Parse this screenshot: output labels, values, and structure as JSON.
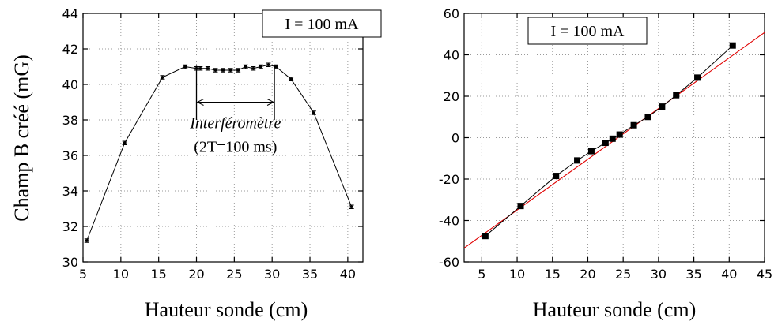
{
  "chart_data": [
    {
      "type": "line",
      "title": "",
      "xlabel": "Hauteur sonde (cm)",
      "ylabel": "Champ B créé (mG)",
      "xlim": [
        5,
        42
      ],
      "ylim": [
        30,
        44
      ],
      "xticks": [
        5,
        10,
        15,
        20,
        25,
        30,
        35,
        40
      ],
      "yticks": [
        30,
        32,
        34,
        36,
        38,
        40,
        42,
        44
      ],
      "grid": true,
      "legend_box": "I = 100 mA",
      "annotation": {
        "line1": "Interféromètre",
        "line2": "(2T=100 ms)",
        "x_start": 20,
        "x_end": 30.3
      },
      "series": [
        {
          "x": [
            5.5,
            10.5,
            15.5,
            18.5,
            20.0,
            20.5,
            21.5,
            22.5,
            23.5,
            24.5,
            25.5,
            26.5,
            27.5,
            28.5,
            29.5,
            30.5,
            32.5,
            35.5,
            40.5
          ],
          "y": [
            31.2,
            36.7,
            40.4,
            41.0,
            40.9,
            40.9,
            40.9,
            40.8,
            40.8,
            40.8,
            40.8,
            41.0,
            40.9,
            41.0,
            41.1,
            41.0,
            40.3,
            38.4,
            33.1
          ],
          "error": 0.1,
          "marker": "errorbar"
        }
      ]
    },
    {
      "type": "scatter",
      "title": "",
      "xlabel": "Hauteur sonde (cm)",
      "ylabel": "",
      "xlim": [
        2.5,
        45
      ],
      "ylim": [
        -60,
        60
      ],
      "xticks": [
        5,
        10,
        15,
        20,
        25,
        30,
        35,
        40,
        45
      ],
      "yticks": [
        -60,
        -40,
        -20,
        0,
        20,
        40,
        60
      ],
      "grid": true,
      "legend_box": "I = 100 mA",
      "series": [
        {
          "x": [
            5.5,
            10.5,
            15.5,
            18.5,
            20.5,
            22.5,
            23.5,
            24.5,
            26.5,
            28.5,
            30.5,
            32.5,
            35.5,
            40.5
          ],
          "y": [
            -47.5,
            -33,
            -18.5,
            -11,
            -6.5,
            -2.5,
            -0.5,
            1.5,
            6,
            10,
            15,
            20.5,
            29,
            44.5
          ],
          "marker": "square",
          "color": "#000000"
        }
      ],
      "fit_line": {
        "x": [
          2.5,
          45
        ],
        "y": [
          -53.3,
          50.8
        ],
        "color": "#e00000"
      }
    }
  ]
}
